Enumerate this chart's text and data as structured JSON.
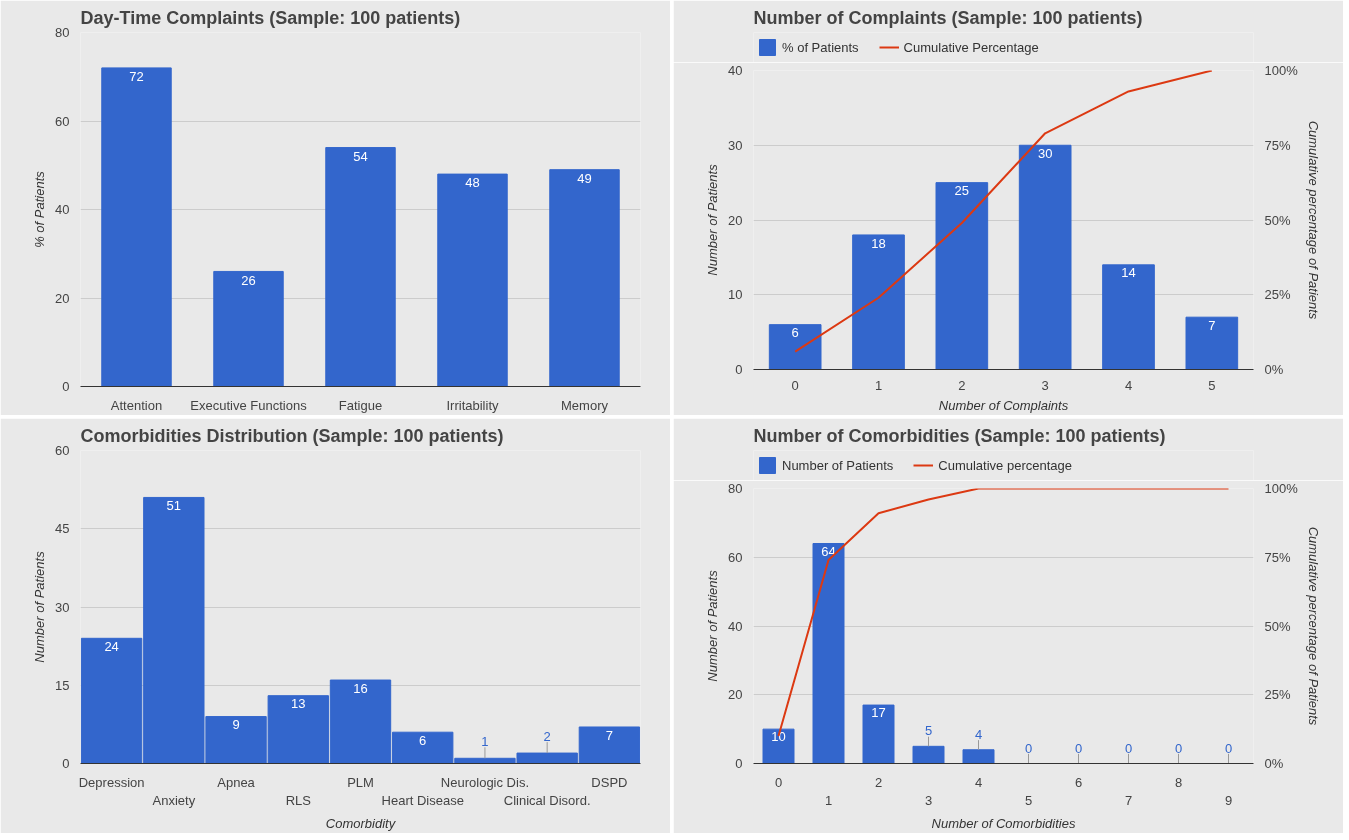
{
  "chart_data": [
    {
      "type": "bar",
      "title": "Day-Time Complaints (Sample: 100 patients)",
      "ylabel": "% of Patients",
      "categories": [
        "Attention",
        "Executive Functions",
        "Fatigue",
        "Irritability",
        "Memory"
      ],
      "color": "#3366cc",
      "values": [
        72,
        26,
        54,
        48,
        49
      ],
      "ylim": [
        0,
        80
      ],
      "yticks": [
        0,
        20,
        40,
        60,
        80
      ],
      "grid": "y",
      "data_labels": true
    },
    {
      "type": "bar",
      "title": "Number of Complaints (Sample: 100 patients)",
      "xlabel": "Number of Complaints",
      "ylabel": "Number of Patients",
      "y2label": "Cumulative percentage of Patients",
      "categories": [
        "0",
        "1",
        "2",
        "3",
        "4",
        "5"
      ],
      "series": [
        {
          "name": "% of Patients",
          "type": "bar",
          "color": "#3366cc",
          "values": [
            6,
            18,
            25,
            30,
            14,
            7
          ],
          "value_labels": [
            "6",
            "18",
            "25",
            "30",
            "14",
            "7"
          ]
        },
        {
          "name": "Cumulative Percentage",
          "type": "line",
          "axis": "y2",
          "color": "#dc3912",
          "values": [
            6,
            24,
            49,
            79,
            93,
            100
          ]
        }
      ],
      "ylim": [
        0,
        40
      ],
      "yticks": [
        0,
        10,
        20,
        30,
        40
      ],
      "y2lim": [
        0,
        100
      ],
      "y2ticks": [
        {
          "value": 0,
          "label": "0%"
        },
        {
          "value": 25,
          "label": "25%"
        },
        {
          "value": 50,
          "label": "50%"
        },
        {
          "value": 75,
          "label": "75%"
        },
        {
          "value": 100,
          "label": "100%"
        }
      ],
      "grid": "y",
      "legend": "top"
    },
    {
      "type": "bar",
      "title": "Comorbidities Distribution (Sample: 100 patients)",
      "xlabel": "Comorbidity",
      "ylabel": "Number of Patients",
      "categories": [
        "Depression",
        "Anxiety",
        "Apnea",
        "RLS",
        "PLM",
        "Heart Disease",
        "Neurologic Dis.",
        "Clinical Disord.",
        "DSPD"
      ],
      "color": "#3366cc",
      "values": [
        24,
        51,
        9,
        13,
        16,
        6,
        1,
        2,
        7
      ],
      "ylim": [
        0,
        60
      ],
      "yticks": [
        0,
        15,
        30,
        45,
        60
      ],
      "grid": "y",
      "data_labels": true
    },
    {
      "type": "bar",
      "title": "Number of Comorbidities (Sample: 100 patients)",
      "xlabel": "Number of Comorbidities",
      "ylabel": "Number of Patients",
      "y2label": "Cumulative percentage of Patients",
      "categories": [
        "0",
        "1",
        "2",
        "3",
        "4",
        "5",
        "6",
        "7",
        "8",
        "9"
      ],
      "series": [
        {
          "name": "Number of Patients",
          "type": "bar",
          "color": "#3366cc",
          "values": [
            10,
            64,
            17,
            5,
            4,
            0,
            0,
            0,
            0,
            0
          ],
          "value_labels": [
            "10",
            "64",
            "17",
            "5",
            "4",
            "0",
            "0",
            "0",
            "0",
            "0"
          ]
        },
        {
          "name": "Cumulative percentage",
          "type": "line",
          "axis": "y2",
          "color": "#dc3912",
          "values": [
            10,
            74,
            91,
            96,
            100,
            100,
            100,
            100,
            100,
            100
          ]
        }
      ],
      "ylim": [
        0,
        80
      ],
      "yticks": [
        0,
        20,
        40,
        60,
        80
      ],
      "y2lim": [
        0,
        100
      ],
      "y2ticks": [
        {
          "value": 0,
          "label": "0%"
        },
        {
          "value": 25,
          "label": "25%"
        },
        {
          "value": 50,
          "label": "50%"
        },
        {
          "value": 75,
          "label": "75%"
        },
        {
          "value": 100,
          "label": "100%"
        }
      ],
      "grid": "y",
      "legend": "top"
    }
  ]
}
